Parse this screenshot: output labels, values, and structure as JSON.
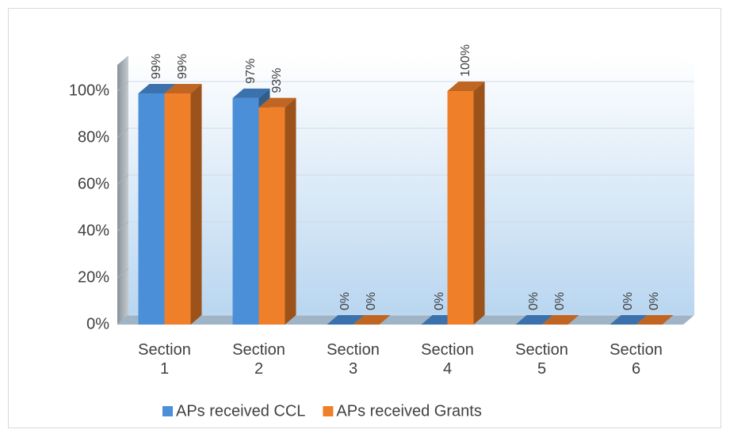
{
  "chart_data": {
    "type": "bar3d",
    "categories": [
      "Section 1",
      "Section 2",
      "Section 3",
      "Section 4",
      "Section 5",
      "Section 6"
    ],
    "series": [
      {
        "name": "APs received CCL",
        "color": "#4a8fd8",
        "values": [
          99,
          97,
          0,
          0,
          0,
          0
        ],
        "value_labels": [
          "99%",
          "97%",
          "0%",
          "0%",
          "0%",
          "0%"
        ]
      },
      {
        "name": "APs received Grants",
        "color": "#f07f2a",
        "values": [
          99,
          93,
          0,
          100,
          0,
          0
        ],
        "value_labels": [
          "99%",
          "93%",
          "0%",
          "100%",
          "0%",
          "0%"
        ]
      }
    ],
    "ylim": [
      0,
      100
    ],
    "yticks": [
      {
        "value": 0,
        "label": "0%"
      },
      {
        "value": 20,
        "label": "20%"
      },
      {
        "value": 40,
        "label": "40%"
      },
      {
        "value": 60,
        "label": "60%"
      },
      {
        "value": 80,
        "label": "80%"
      },
      {
        "value": 100,
        "label": "100%"
      }
    ],
    "grid": true,
    "legend": "bottom"
  }
}
